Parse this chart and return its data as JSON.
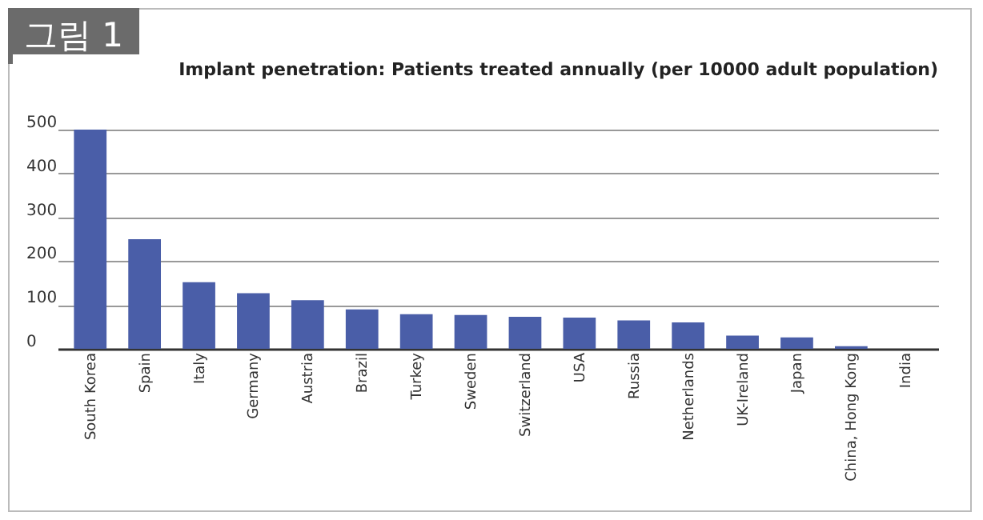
{
  "chart_data": {
    "type": "bar",
    "title": "그림 1",
    "subtitle": "Implant penetration: Patients treated annually (per 10000 adult population)",
    "categories": [
      "South Korea",
      "Spain",
      "Italy",
      "Germany",
      "Austria",
      "Brazil",
      "Turkey",
      "Sweden",
      "Switzerland",
      "USA",
      "Russia",
      "Netherlands",
      "UK-Ireland",
      "Japan",
      "China, Hong Kong",
      "India"
    ],
    "values": [
      500,
      250,
      152,
      127,
      111,
      90,
      79,
      77,
      73,
      71,
      65,
      60,
      30,
      26,
      6,
      0
    ],
    "color": "#4a5ea8",
    "ylim": [
      0,
      500
    ],
    "yticks": [
      0,
      100,
      200,
      300,
      400,
      500
    ],
    "grid": "y"
  }
}
